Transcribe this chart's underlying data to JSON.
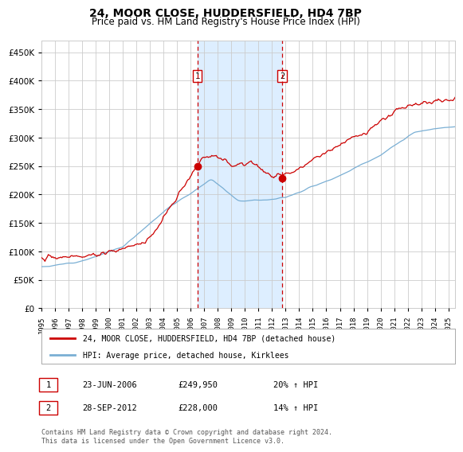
{
  "title": "24, MOOR CLOSE, HUDDERSFIELD, HD4 7BP",
  "subtitle": "Price paid vs. HM Land Registry's House Price Index (HPI)",
  "title_fontsize": 10,
  "subtitle_fontsize": 8.5,
  "ylim": [
    0,
    470000
  ],
  "yticks": [
    0,
    50000,
    100000,
    150000,
    200000,
    250000,
    300000,
    350000,
    400000,
    450000
  ],
  "sale1_date_num": 2006.48,
  "sale1_price": 249950,
  "sale2_date_num": 2012.75,
  "sale2_price": 228000,
  "shaded_start": 2006.48,
  "shaded_end": 2012.75,
  "vline1_x": 2006.48,
  "vline2_x": 2012.75,
  "legend_line1": "24, MOOR CLOSE, HUDDERSFIELD, HD4 7BP (detached house)",
  "legend_line2": "HPI: Average price, detached house, Kirklees",
  "table_row1": [
    "1",
    "23-JUN-2006",
    "£249,950",
    "20% ↑ HPI"
  ],
  "table_row2": [
    "2",
    "28-SEP-2012",
    "£228,000",
    "14% ↑ HPI"
  ],
  "footnote": "Contains HM Land Registry data © Crown copyright and database right 2024.\nThis data is licensed under the Open Government Licence v3.0.",
  "line1_color": "#cc0000",
  "line2_color": "#7aafd4",
  "shade_color": "#ddeeff",
  "vline_color": "#cc0000",
  "grid_color": "#cccccc",
  "bg_color": "#ffffff",
  "xmin": 1995.0,
  "xmax": 2025.5
}
